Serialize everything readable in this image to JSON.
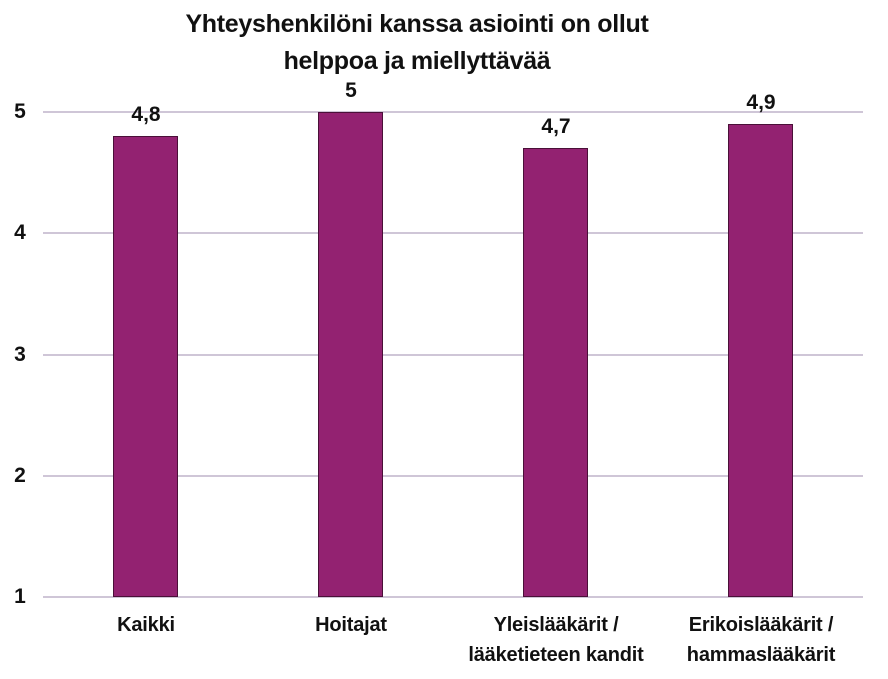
{
  "chart_data": {
    "type": "bar",
    "title": "Yhteyshenkilöni kanssa asiointi on ollut helppoa ja miellyttävää",
    "title_lines": [
      "Yhteyshenkilöni kanssa asiointi on ollut",
      "helppoa ja miellyttävää"
    ],
    "categories": [
      "Kaikki",
      "Hoitajat",
      "Yleislääkärit / lääketieteen kandit",
      "Erikoislääkärit / hammaslääkärit"
    ],
    "category_label_lines": [
      [
        "Kaikki"
      ],
      [
        "Hoitajat"
      ],
      [
        "Yleislääkärit /",
        "lääketieteen kandit"
      ],
      [
        "Erikoislääkärit /",
        "hammaslääkärit"
      ]
    ],
    "values": [
      4.8,
      5,
      4.7,
      4.9
    ],
    "value_labels": [
      "4,8",
      "5",
      "4,7",
      "4,9"
    ],
    "xlabel": "",
    "ylabel": "",
    "ylim": [
      1,
      5
    ],
    "y_ticks": [
      1,
      2,
      3,
      4,
      5
    ],
    "y_tick_labels": [
      "1",
      "2",
      "3",
      "4",
      "5"
    ],
    "grid": true,
    "legend": "none",
    "colors": {
      "bar_fill": "#932271",
      "bar_border": "#4a1038",
      "gridline": "#cfc6d7",
      "text": "#111111",
      "background": "#ffffff"
    }
  }
}
